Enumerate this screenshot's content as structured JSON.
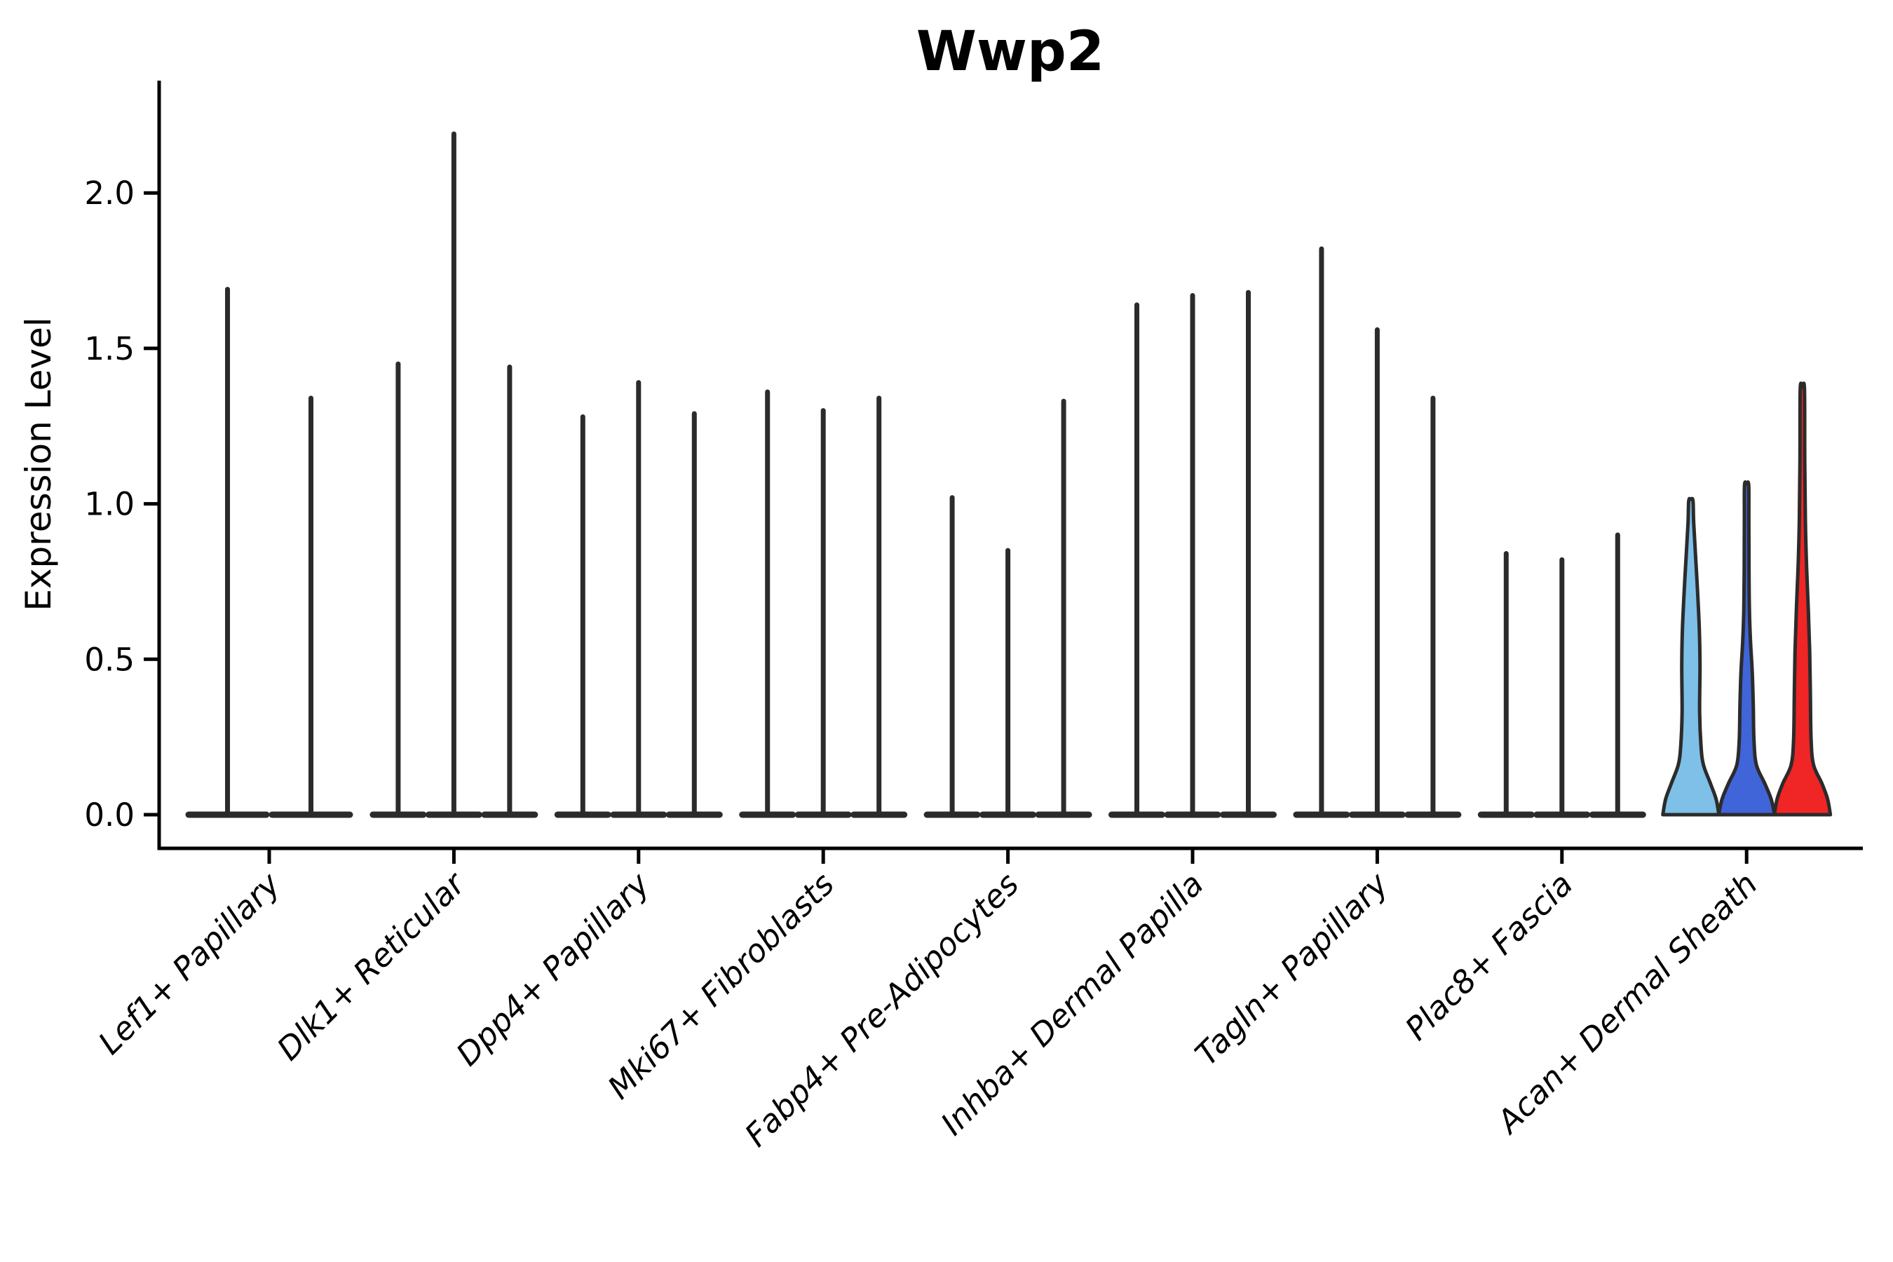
{
  "title": "Wwp2",
  "ylabel": "Expression Level",
  "colors": {
    "axis": "#000000",
    "violin_stroke": "#2b2b2b",
    "background": "#ffffff",
    "split_fills": [
      "#7EC0E8",
      "#3F65D9",
      "#F02525"
    ]
  },
  "chart_data": {
    "type": "violin",
    "title": "Wwp2",
    "xlabel": "",
    "ylabel": "Expression Level",
    "ylim": [
      0.0,
      2.36
    ],
    "yticks": [
      "0.0",
      "0.5",
      "1.0",
      "1.5",
      "2.0"
    ],
    "ytick_values": [
      0.0,
      0.5,
      1.0,
      1.5,
      2.0
    ],
    "grid": false,
    "legend": "none",
    "note": "Split violin plot; most violins collapse to a flat base at 0 with a thin spike to the max expression value. Only the last category (Acan+ Dermal Sheath) has visibly filled/bulged violins colored sky blue, royal blue and red.",
    "categories": [
      {
        "label": "Lef1+ Papillary",
        "violins": [
          {
            "max": 1.69,
            "shape": "spike",
            "fill": "none"
          },
          {
            "max": 1.34,
            "shape": "spike",
            "fill": "none"
          }
        ]
      },
      {
        "label": "Dlk1+ Reticular",
        "violins": [
          {
            "max": 1.45,
            "shape": "spike",
            "fill": "none"
          },
          {
            "max": 2.19,
            "shape": "spike",
            "fill": "none"
          },
          {
            "max": 1.44,
            "shape": "spike",
            "fill": "none"
          }
        ]
      },
      {
        "label": "Dpp4+ Papillary",
        "violins": [
          {
            "max": 1.28,
            "shape": "spike",
            "fill": "none"
          },
          {
            "max": 1.39,
            "shape": "spike",
            "fill": "none"
          },
          {
            "max": 1.29,
            "shape": "spike",
            "fill": "none"
          }
        ]
      },
      {
        "label": "Mki67+ Fibroblasts",
        "violins": [
          {
            "max": 1.36,
            "shape": "spike",
            "fill": "none"
          },
          {
            "max": 1.3,
            "shape": "spike",
            "fill": "none"
          },
          {
            "max": 1.34,
            "shape": "spike",
            "fill": "none"
          }
        ]
      },
      {
        "label": "Fabp4+ Pre-Adipocytes",
        "violins": [
          {
            "max": 1.02,
            "shape": "spike",
            "fill": "none"
          },
          {
            "max": 0.85,
            "shape": "spike",
            "fill": "none"
          },
          {
            "max": 1.33,
            "shape": "spike",
            "fill": "none"
          }
        ]
      },
      {
        "label": "Inhba+ Dermal Papilla",
        "violins": [
          {
            "max": 1.64,
            "shape": "spike",
            "fill": "none"
          },
          {
            "max": 1.67,
            "shape": "spike",
            "fill": "none"
          },
          {
            "max": 1.68,
            "shape": "spike",
            "fill": "none"
          }
        ]
      },
      {
        "label": "Tagln+ Papillary",
        "violins": [
          {
            "max": 1.82,
            "shape": "spike",
            "fill": "none"
          },
          {
            "max": 1.56,
            "shape": "spike",
            "fill": "none"
          },
          {
            "max": 1.34,
            "shape": "spike",
            "fill": "none"
          }
        ]
      },
      {
        "label": "Plac8+ Fascia",
        "violins": [
          {
            "max": 0.84,
            "shape": "spike",
            "fill": "none"
          },
          {
            "max": 0.82,
            "shape": "spike",
            "fill": "none"
          },
          {
            "max": 0.9,
            "shape": "spike",
            "fill": "none"
          }
        ]
      },
      {
        "label": "Acan+ Dermal Sheath",
        "violins": [
          {
            "max": 1.01,
            "shape": "violin",
            "fill": "#7EC0E8",
            "profile": [
              [
                0,
                40
              ],
              [
                0.05,
                36
              ],
              [
                0.1,
                28
              ],
              [
                0.16,
                18
              ],
              [
                0.22,
                14.5
              ],
              [
                0.33,
                12.5
              ],
              [
                0.48,
                13
              ],
              [
                0.6,
                12
              ],
              [
                0.72,
                9.5
              ],
              [
                0.84,
                6.5
              ],
              [
                0.94,
                4
              ],
              [
                1.01,
                3
              ]
            ]
          },
          {
            "max": 1.06,
            "shape": "violin",
            "fill": "#3F65D9",
            "profile": [
              [
                0,
                40
              ],
              [
                0.05,
                35
              ],
              [
                0.1,
                26
              ],
              [
                0.16,
                14
              ],
              [
                0.24,
                10.5
              ],
              [
                0.35,
                9.5
              ],
              [
                0.46,
                8
              ],
              [
                0.56,
                5.5
              ],
              [
                0.66,
                4
              ],
              [
                0.8,
                3.4
              ],
              [
                0.95,
                3.2
              ],
              [
                1.06,
                3
              ]
            ]
          },
          {
            "max": 1.37,
            "shape": "violin",
            "fill": "#F02525",
            "profile": [
              [
                0,
                40
              ],
              [
                0.05,
                36
              ],
              [
                0.1,
                28
              ],
              [
                0.16,
                16
              ],
              [
                0.24,
                12.5
              ],
              [
                0.38,
                11.5
              ],
              [
                0.52,
                10.5
              ],
              [
                0.66,
                8.5
              ],
              [
                0.8,
                6
              ],
              [
                0.95,
                4.3
              ],
              [
                1.15,
                3.4
              ],
              [
                1.37,
                3
              ]
            ]
          }
        ]
      }
    ]
  },
  "axis_ticks": {
    "y_tick_count": 5,
    "x_tick_count": 9
  }
}
